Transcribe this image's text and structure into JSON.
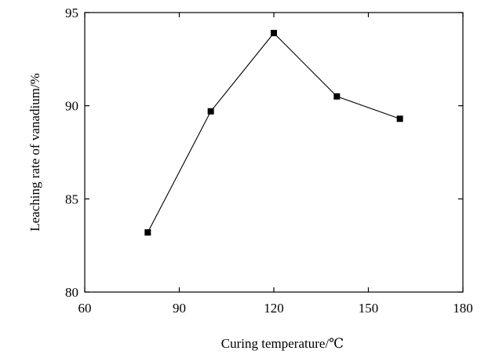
{
  "chart_data": {
    "type": "line",
    "title": "",
    "xlabel": "Curing temperature/℃",
    "ylabel": "Leaching rate of vanadium/%",
    "xlim": [
      60,
      180
    ],
    "ylim": [
      80,
      95
    ],
    "xticks": [
      60,
      90,
      120,
      150,
      180
    ],
    "yticks": [
      80,
      85,
      90,
      95
    ],
    "grid": false,
    "legend": "none",
    "marker": "square",
    "series": [
      {
        "x": [
          80,
          100,
          120,
          140,
          160
        ],
        "y": [
          83.2,
          89.7,
          93.9,
          90.5,
          89.3
        ]
      }
    ]
  }
}
